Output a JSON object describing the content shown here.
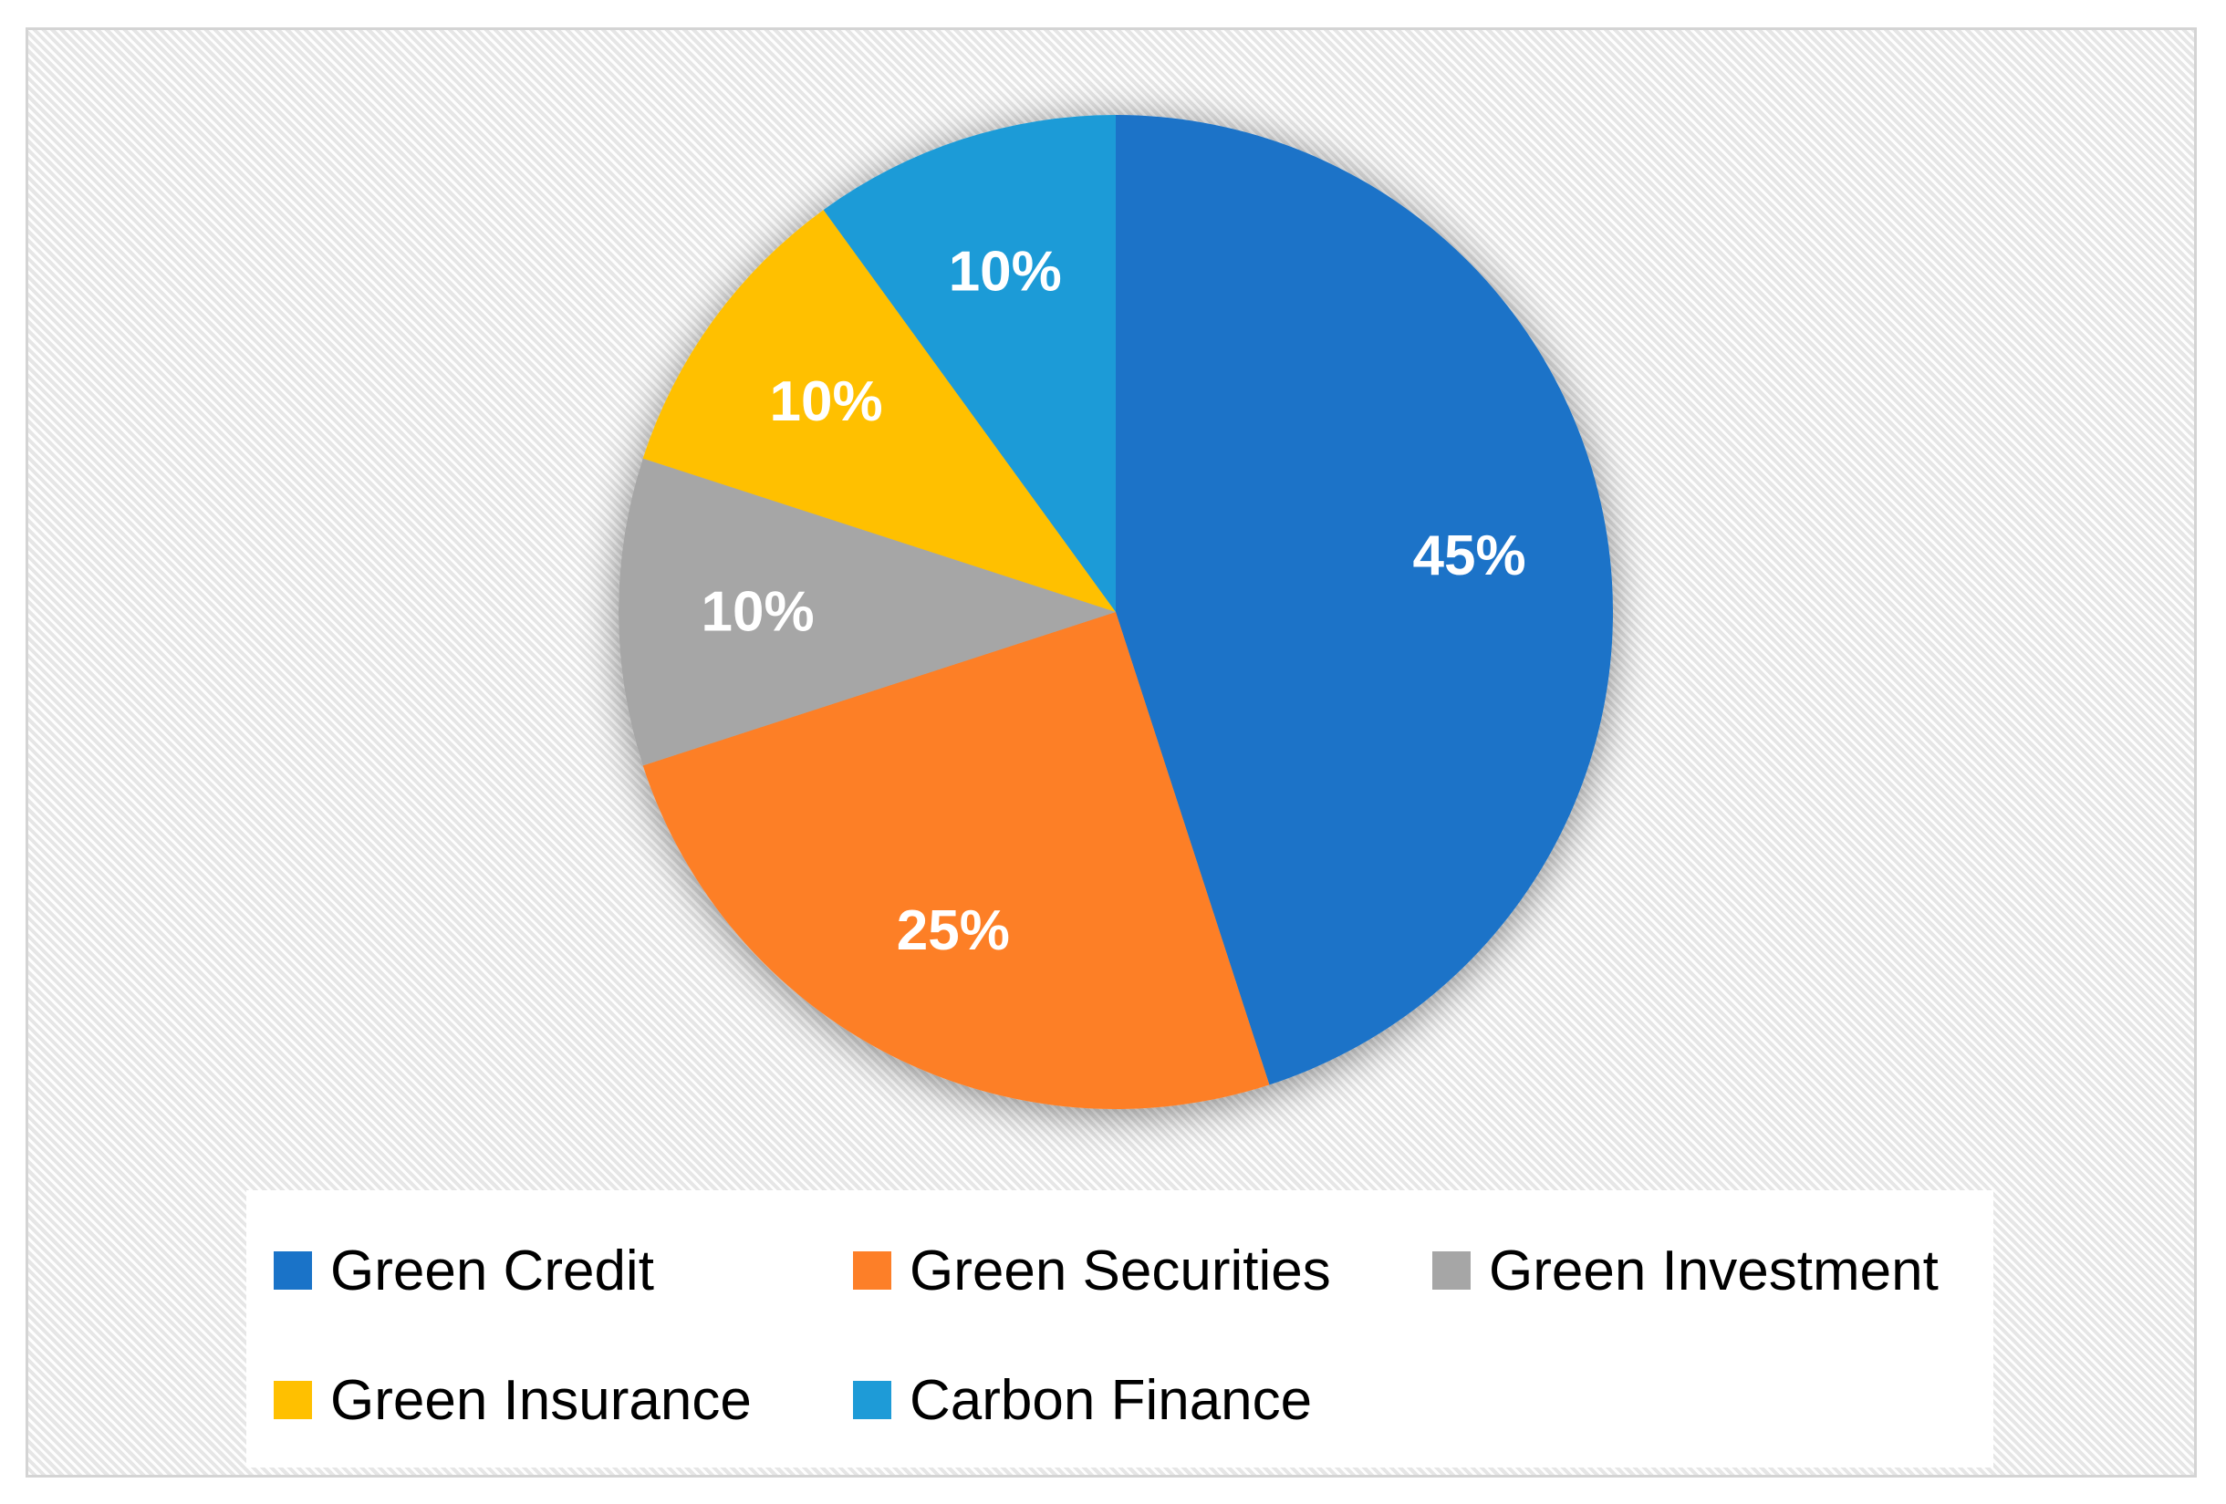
{
  "chart_data": {
    "type": "pie",
    "title": "",
    "categories": [
      "Green Credit",
      "Green Securities",
      "Green Investment",
      "Green Insurance",
      "Carbon Finance"
    ],
    "values": [
      45,
      25,
      10,
      10,
      10
    ],
    "labels": [
      "45%",
      "25%",
      "10%",
      "10%",
      "10%"
    ],
    "colors": [
      "#1a73c8",
      "#fd7f28",
      "#a6a6a6",
      "#ffc000",
      "#1e9bd7"
    ],
    "start_angle_deg": 0,
    "direction": "clockwise",
    "legend_position": "bottom"
  },
  "legend": {
    "items": [
      {
        "label": "Green Credit",
        "color": "#1a73c8"
      },
      {
        "label": "Green Securities",
        "color": "#fd7f28"
      },
      {
        "label": "Green Investment",
        "color": "#a6a6a6"
      },
      {
        "label": "Green Insurance",
        "color": "#ffc000"
      },
      {
        "label": "Carbon Finance",
        "color": "#1e9bd7"
      }
    ]
  }
}
